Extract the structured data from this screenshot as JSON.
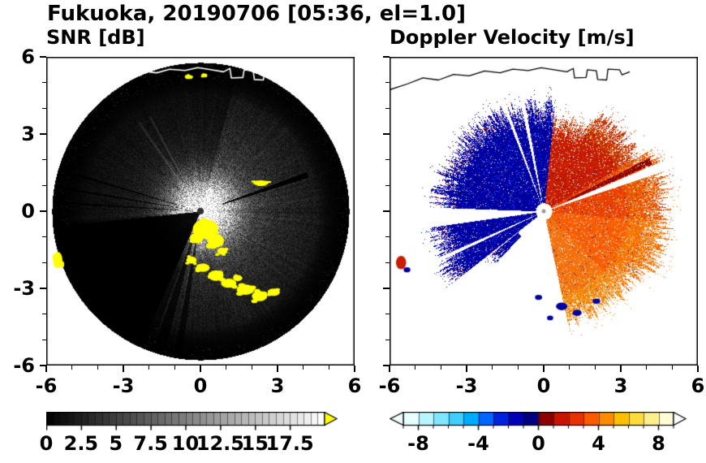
{
  "figure": {
    "title": "Fukuoka, 20190706 [05:36, el=1.0]"
  },
  "panels": {
    "snr": {
      "title": "SNR [dB]"
    },
    "velocity": {
      "title": "Doppler Velocity [m/s]"
    }
  },
  "axes": {
    "xlim": [
      -6,
      6
    ],
    "ylim": [
      -6,
      6
    ],
    "xtick_values": [
      -6,
      -3,
      0,
      3,
      6
    ],
    "xtick_labels": [
      "-6",
      "-3",
      "0",
      "3",
      "6"
    ],
    "ytick_values": [
      6,
      3,
      0,
      -3,
      -6
    ],
    "ytick_labels": [
      "6",
      "3",
      "0",
      "-3",
      "-6"
    ],
    "minor_step": 1
  },
  "colorbars": {
    "snr": {
      "min": 0,
      "max": 20,
      "cells": 40,
      "tick_values": [
        0,
        2.5,
        5,
        7.5,
        10,
        12.5,
        15,
        17.5
      ],
      "tick_labels": [
        "0",
        "2.5",
        "5",
        "7.5",
        "10",
        "12.5",
        "15",
        "17.5"
      ],
      "start_color": "#000000",
      "end_color": "#ffffff",
      "overflow_color": "#ffff00"
    },
    "velocity": {
      "min": -9,
      "max": 9,
      "tick_values": [
        -8,
        -4,
        0,
        4,
        8
      ],
      "tick_labels": [
        "-8",
        "-4",
        "0",
        "4",
        "8"
      ],
      "underflow_color": "#eefcff",
      "overflow_color": "#ffffff",
      "cell_colors": [
        "#e8feff",
        "#baf4ff",
        "#7fe6ff",
        "#41ceff",
        "#00aaff",
        "#0066ff",
        "#0022dd",
        "#0000b4",
        "#000080",
        "#8c0000",
        "#c81400",
        "#e63200",
        "#fa5a00",
        "#ff8c00",
        "#ffbe00",
        "#ffdc3c",
        "#ffee8c",
        "#fffbd2"
      ]
    }
  },
  "chart_data": [
    {
      "type": "heatmap",
      "panel": "snr",
      "title": "SNR [dB]",
      "xlim": [
        -6,
        6
      ],
      "ylim": [
        -6,
        6
      ],
      "units": "dB",
      "value_range": [
        0,
        20
      ],
      "radar": {
        "max_range": 5.78,
        "glow_peak": 250,
        "glow_sigma": 1.15,
        "fan_gain": 130,
        "fan_decay": 2.6,
        "fans": [
          {
            "a0": 285,
            "a1": 75,
            "amp": 1.0
          },
          {
            "a0": 75,
            "a1": 185,
            "amp": 0.55
          },
          {
            "a0": 185,
            "a1": 250,
            "amp": 0.3
          },
          {
            "a0": 250,
            "a1": 285,
            "amp": 0.85
          }
        ],
        "edge_fade_start": 4.55,
        "edge_fade_scale": 0.5,
        "dark_wedges": [
          {
            "a0": 186,
            "a1": 246,
            "r0": 0.1,
            "r1": 6,
            "mult": 0.04
          },
          {
            "a0": 17.5,
            "a1": 20.5,
            "r0": 0.9,
            "r1": 4.4,
            "mult": 0.08
          },
          {
            "a0": 251,
            "a1": 255.5,
            "r0": 0.3,
            "r1": 6,
            "mult": 0.25
          },
          {
            "a0": 259.5,
            "a1": 262.5,
            "r0": 0.3,
            "r1": 6,
            "mult": 0.3
          },
          {
            "a0": 163,
            "a1": 164.3,
            "r0": 0.3,
            "r1": 6,
            "mult": 0.2
          },
          {
            "a0": 169.8,
            "a1": 171,
            "r0": 0.3,
            "r1": 6,
            "mult": 0.2
          },
          {
            "a0": 175.8,
            "a1": 177,
            "r0": 0.3,
            "r1": 6,
            "mult": 0.25
          }
        ],
        "bright_rays": [
          {
            "a0": 117.5,
            "a1": 119,
            "add": 70
          },
          {
            "a0": 124,
            "a1": 125.5,
            "add": 70
          }
        ],
        "center_dot_r": 0.13,
        "center_dot_color": "#2f2f2f"
      },
      "yellow_color": "#ffff00",
      "yellow_blobs": [
        [
          0.2,
          -0.7,
          0.5,
          0.38
        ],
        [
          0.6,
          -1.15,
          0.32,
          0.26
        ],
        [
          -0.15,
          -1.05,
          0.26,
          0.2
        ],
        [
          0.85,
          -1.55,
          0.2,
          0.14
        ],
        [
          -0.35,
          -1.9,
          0.2,
          0.14
        ],
        [
          0.1,
          -2.2,
          0.26,
          0.16
        ],
        [
          0.6,
          -2.5,
          0.3,
          0.2
        ],
        [
          1.1,
          -2.8,
          0.3,
          0.18
        ],
        [
          1.45,
          -2.6,
          0.18,
          0.12
        ],
        [
          1.75,
          -3.05,
          0.34,
          0.2
        ],
        [
          2.3,
          -3.3,
          0.3,
          0.2
        ],
        [
          2.85,
          -3.15,
          0.24,
          0.14
        ],
        [
          2.35,
          1.1,
          0.3,
          0.1
        ],
        [
          -5.55,
          -1.9,
          0.18,
          0.32
        ],
        [
          -0.45,
          5.22,
          0.16,
          0.08
        ],
        [
          0.15,
          5.28,
          0.12,
          0.07
        ]
      ],
      "coastline_color": "#ffffff"
    },
    {
      "type": "heatmap",
      "panel": "velocity",
      "title": "Doppler Velocity [m/s]",
      "xlim": [
        -6,
        6
      ],
      "ylim": [
        -6,
        6
      ],
      "units": "m/s",
      "value_range": [
        -9,
        9
      ],
      "radar": {
        "max_range": 5.78,
        "center_hole_r": 0.3,
        "regions": [
          {
            "a0": 84,
            "a1": 178,
            "r0": 0.32,
            "r1": 4.25,
            "type": "neg"
          },
          {
            "a0": 188,
            "a1": 218,
            "r0": 0.32,
            "r1": 4.45,
            "type": "neg"
          },
          {
            "a0": 219,
            "a1": 227,
            "r0": 1.3,
            "r1": 2.7,
            "type": "neg"
          },
          {
            "a0": 282,
            "a1": 330,
            "r0": 0.32,
            "r1": 4.45,
            "type": "pos"
          },
          {
            "a0": 330,
            "a1": 30,
            "r0": 0.32,
            "r1": 4.85,
            "type": "pos"
          },
          {
            "a0": 30,
            "a1": 62,
            "r0": 0.32,
            "r1": 4.3,
            "type": "pos"
          },
          {
            "a0": 62,
            "a1": 84,
            "r0": 0.32,
            "r1": 3.7,
            "type": "pos"
          }
        ],
        "white_rays": [
          {
            "a0": 100,
            "a1": 102.3
          },
          {
            "a0": 109.5,
            "a1": 111.3
          },
          {
            "a0": 18.5,
            "a1": 23
          },
          {
            "a0": 203.5,
            "a1": 205.5
          }
        ],
        "dark_streak": {
          "a0": 23.5,
          "a1": 27,
          "r0": 1.0,
          "r1": 4.6,
          "color": "#8c0000"
        }
      },
      "palette": {
        "neg_base": "#0000a0",
        "neg_light": "#2b5cff",
        "neg_speck_red": "#c81e00",
        "pos_upper": "#c81e00",
        "pos_mid": "#eb4400",
        "pos_low": "#fa5f05",
        "pos_lower": "#f5730f",
        "yellow_speck": "#ffc832"
      },
      "blobs": [
        [
          -5.55,
          -2.0,
          0.2,
          0.26,
          "#c81e00"
        ],
        [
          -5.32,
          -2.28,
          0.13,
          0.1,
          "#0000a0"
        ],
        [
          0.7,
          -3.7,
          0.22,
          0.15,
          "#0000a0"
        ],
        [
          1.3,
          -3.95,
          0.18,
          0.12,
          "#0000a0"
        ],
        [
          2.05,
          -3.5,
          0.15,
          0.1,
          "#0000a0"
        ],
        [
          0.25,
          -4.15,
          0.12,
          0.09,
          "#0000a0"
        ],
        [
          -0.2,
          -3.35,
          0.14,
          0.1,
          "#0000a0"
        ]
      ],
      "coastline_color": "#000000"
    }
  ],
  "coastline": [
    [
      -6,
      4.72
    ],
    [
      -5.3,
      4.95
    ],
    [
      -4.7,
      5.18
    ],
    [
      -4.1,
      5.1
    ],
    [
      -3.5,
      5.32
    ],
    [
      -2.9,
      5.26
    ],
    [
      -2.3,
      5.45
    ],
    [
      -1.7,
      5.38
    ],
    [
      -1.2,
      5.52
    ],
    [
      -0.6,
      5.47
    ],
    [
      -0.1,
      5.58
    ],
    [
      0.4,
      5.5
    ],
    [
      0.9,
      5.42
    ],
    [
      1.15,
      5.55
    ],
    [
      1.2,
      5.18
    ],
    [
      1.65,
      5.2
    ],
    [
      1.7,
      5.5
    ],
    [
      2.05,
      5.46
    ],
    [
      2.1,
      5.12
    ],
    [
      2.45,
      5.1
    ],
    [
      2.5,
      5.52
    ],
    [
      2.95,
      5.5
    ],
    [
      3.05,
      5.3
    ],
    [
      3.35,
      5.42
    ]
  ]
}
